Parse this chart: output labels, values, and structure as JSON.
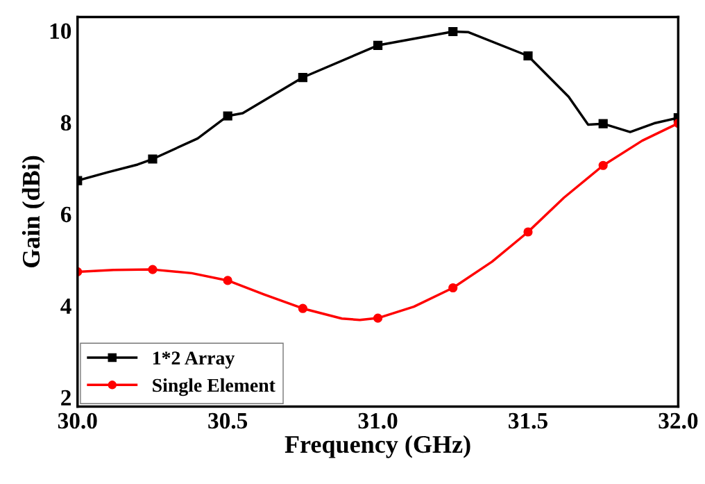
{
  "chart_data": {
    "type": "line",
    "xlabel": "Frequency (GHz)",
    "ylabel": "Gain (dBi)",
    "xlim": [
      30.0,
      32.0
    ],
    "ylim": [
      1.8,
      10.3
    ],
    "xticks": [
      {
        "value": 30.0,
        "label": "30.0"
      },
      {
        "value": 30.5,
        "label": "30.5"
      },
      {
        "value": 31.0,
        "label": "31.0"
      },
      {
        "value": 31.5,
        "label": "31.5"
      },
      {
        "value": 32.0,
        "label": "32.0"
      }
    ],
    "yticks": [
      2,
      4,
      6,
      8,
      10
    ],
    "grid": false,
    "legend": "bottom left",
    "line_style": "solid",
    "series": [
      {
        "name": "1*2 Array",
        "color": "#000000",
        "marker": "square",
        "x": [
          30.0,
          30.1,
          30.2,
          30.25,
          30.4,
          30.5,
          30.55,
          30.75,
          31.0,
          31.25,
          31.3,
          31.5,
          31.635,
          31.7,
          31.75,
          31.84,
          31.92,
          32.0
        ],
        "values": [
          6.73,
          6.91,
          7.08,
          7.2,
          7.65,
          8.14,
          8.2,
          8.98,
          9.68,
          9.98,
          9.97,
          9.45,
          8.56,
          7.95,
          7.97,
          7.79,
          7.98,
          8.1
        ]
      },
      {
        "name": "Single Element",
        "color": "#ff0000",
        "marker": "circle",
        "x": [
          30.0,
          30.12,
          30.25,
          30.38,
          30.5,
          30.62,
          30.75,
          30.88,
          30.94,
          31.0,
          31.12,
          31.25,
          31.38,
          31.5,
          31.62,
          31.75,
          31.88,
          32.0
        ],
        "values": [
          4.74,
          4.78,
          4.79,
          4.71,
          4.55,
          4.25,
          3.94,
          3.72,
          3.69,
          3.73,
          3.98,
          4.39,
          4.96,
          5.61,
          6.36,
          7.06,
          7.6,
          7.98
        ]
      }
    ]
  }
}
